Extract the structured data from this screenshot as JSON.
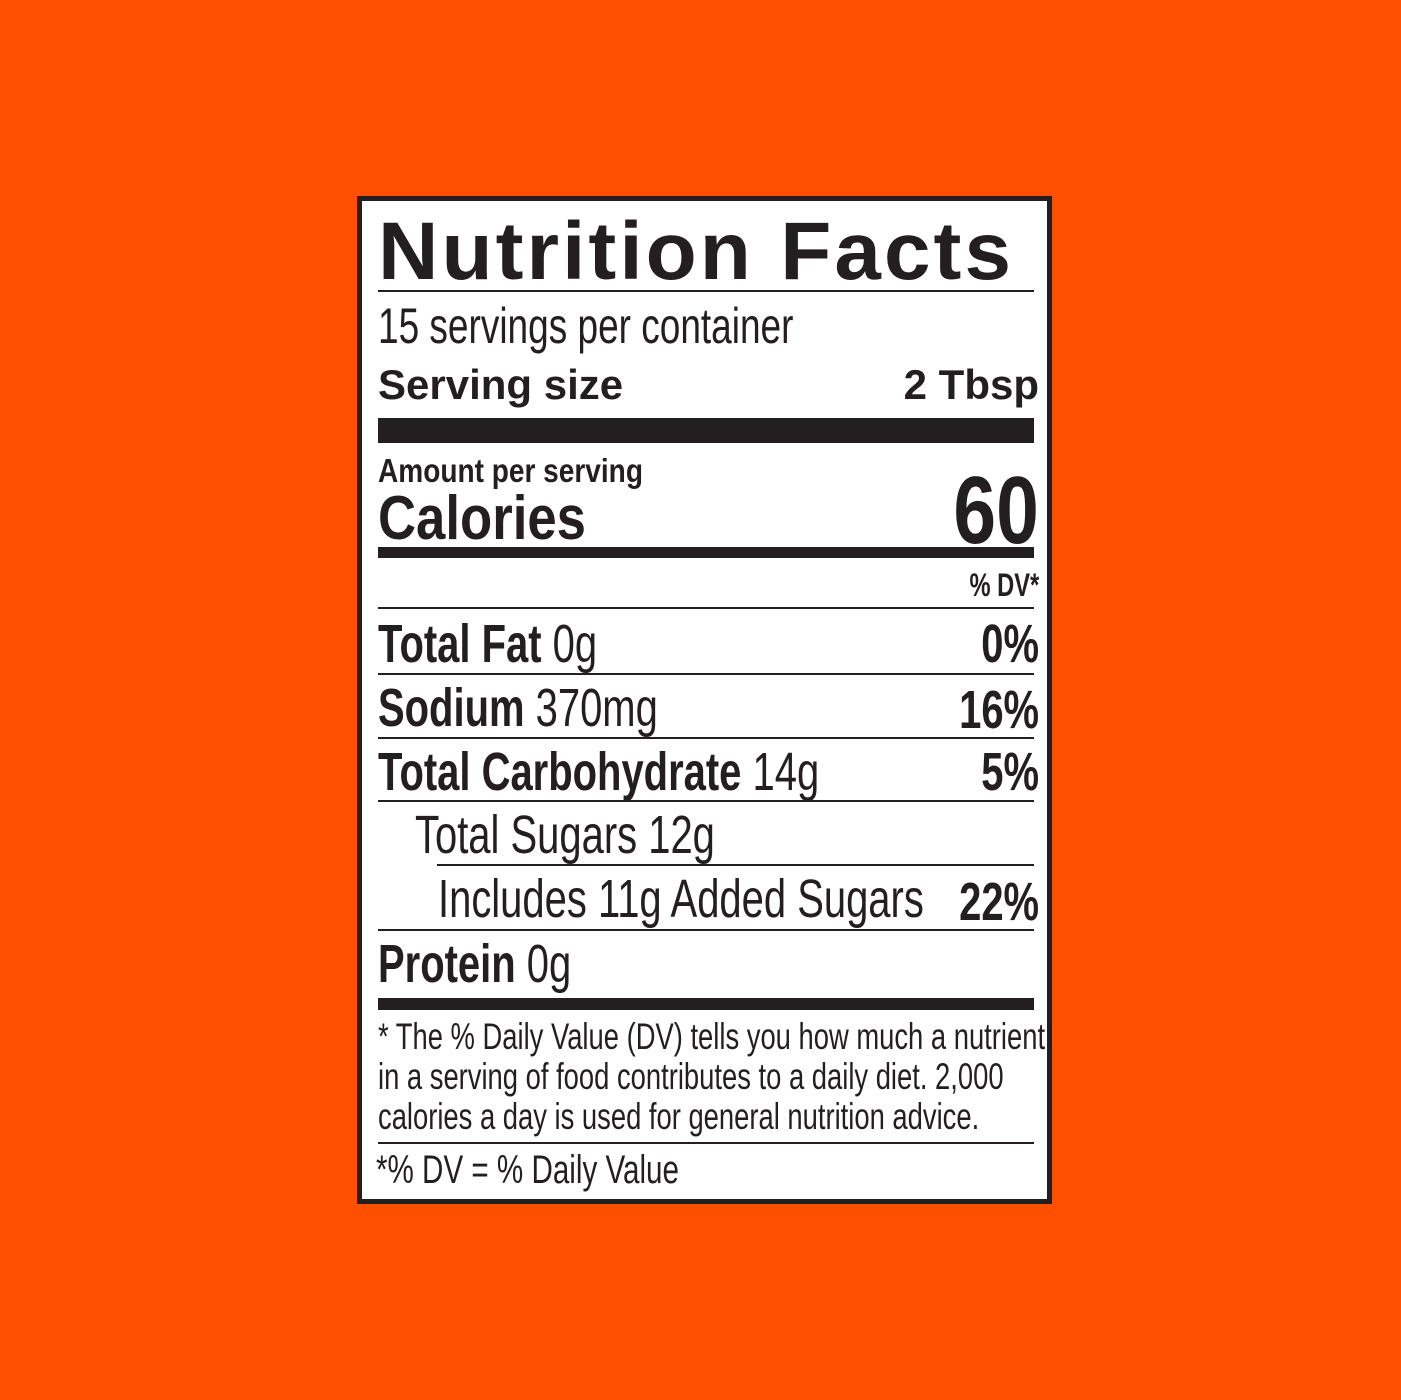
{
  "label": {
    "title": "Nutrition Facts",
    "servings_per_container": "15 servings per container",
    "serving_size_label": "Serving size",
    "serving_size_value": "2 Tbsp",
    "amount_per_serving": "Amount per serving",
    "calories_label": "Calories",
    "calories_value": "60",
    "dv_header": "% DV*",
    "nutrients": [
      {
        "name": "Total Fat",
        "amount": "0g",
        "dv": "0%"
      },
      {
        "name": "Sodium",
        "amount": "370mg",
        "dv": "16%"
      },
      {
        "name": "Total Carbohydrate",
        "amount": "14g",
        "dv": "5%"
      },
      {
        "name": "Total Sugars 12g",
        "amount": "",
        "dv": ""
      },
      {
        "name": "Includes 11g Added Sugars",
        "amount": "",
        "dv": "22%"
      },
      {
        "name": "Protein",
        "amount": "0g",
        "dv": ""
      }
    ],
    "footnote": [
      "* The % Daily Value (DV) tells you how much a nutrient",
      "in a serving of food contributes to a daily diet. 2,000",
      "calories a day is used for general nutrition advice."
    ],
    "dv_definition": "*% DV = % Daily Value"
  },
  "colors": {
    "background": "#fe5000",
    "ink": "#231f20",
    "panel": "#ffffff"
  }
}
